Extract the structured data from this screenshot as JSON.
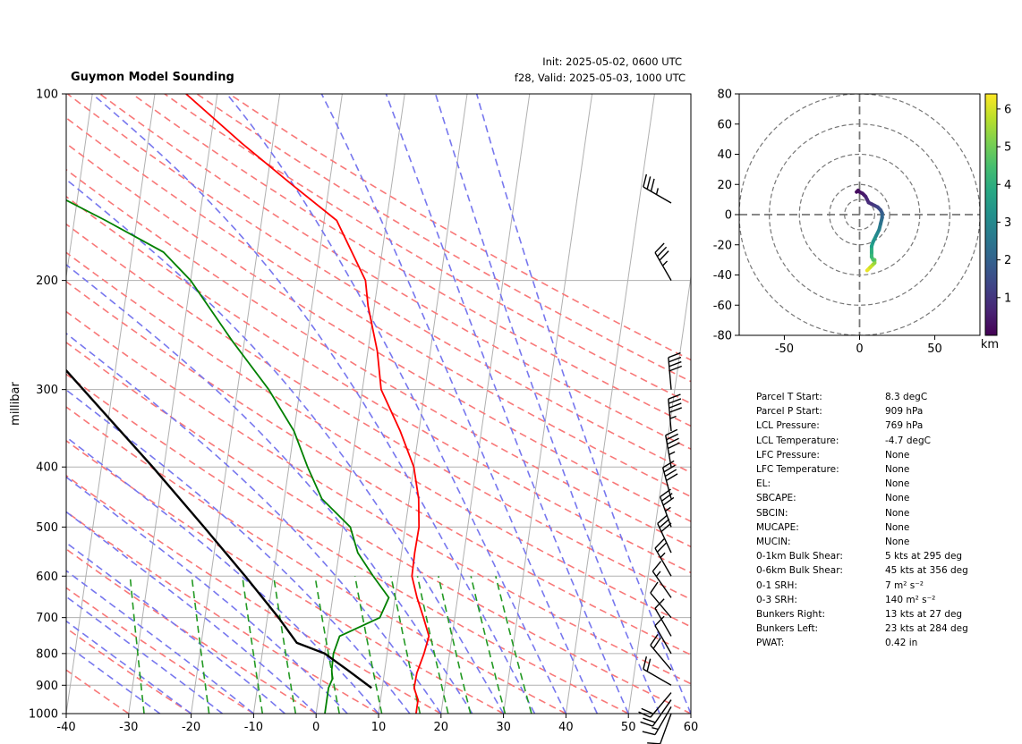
{
  "header": {
    "title": "Guymon Model Sounding",
    "init": "Init: 2025-05-02, 0600 UTC",
    "valid": "f28, Valid: 2025-05-03, 1000 UTC"
  },
  "colors": {
    "temperature": "#ff0000",
    "dewpoint": "#008000",
    "parcel": "#000000",
    "dry_adiabat": "#f87878",
    "moist_adiabat": "#7777ee",
    "mixing_ratio": "#229922",
    "freezing_isotherm": "#7744cc",
    "isotherm": "#b0b0b0",
    "isobar": "#b0b0b0"
  },
  "chart_data": [
    {
      "type": "line",
      "name": "skewt",
      "title": "Guymon Model Sounding",
      "xlabel": "",
      "ylabel": "millibar",
      "x_ticks": [
        -40,
        -30,
        -20,
        -10,
        0,
        10,
        20,
        30,
        40,
        50,
        60
      ],
      "y_ticks": [
        100,
        200,
        300,
        400,
        500,
        600,
        700,
        800,
        900,
        1000
      ],
      "xlim": [
        -40,
        60
      ],
      "ylim": [
        1000,
        100
      ],
      "y_scale": "log",
      "skew_per_decade": 99,
      "grid": true,
      "series": [
        {
          "role": "temperature",
          "points": [
            [
              1000,
              16
            ],
            [
              950,
              16
            ],
            [
              909,
              15.1
            ],
            [
              860,
              15.2
            ],
            [
              800,
              15.9
            ],
            [
              750,
              16.3
            ],
            [
              700,
              15
            ],
            [
              650,
              13.5
            ],
            [
              600,
              12.2
            ],
            [
              550,
              12.1
            ],
            [
              500,
              12.2
            ],
            [
              450,
              11.5
            ],
            [
              400,
              10
            ],
            [
              350,
              7
            ],
            [
              300,
              3
            ],
            [
              260,
              1.5
            ],
            [
              220,
              -1
            ],
            [
              200,
              -2
            ],
            [
              160,
              -8
            ],
            [
              140,
              -16
            ],
            [
              120,
              -25
            ],
            [
              100,
              -35
            ]
          ]
        },
        {
          "role": "dewpoint",
          "points": [
            [
              1000,
              1.4
            ],
            [
              909,
              1.4
            ],
            [
              880,
              1.8
            ],
            [
              850,
              1.5
            ],
            [
              800,
              1.4
            ],
            [
              750,
              2
            ],
            [
              700,
              8
            ],
            [
              650,
              9
            ],
            [
              600,
              6
            ],
            [
              550,
              3
            ],
            [
              500,
              1.2
            ],
            [
              450,
              -4
            ],
            [
              400,
              -7
            ],
            [
              350,
              -10
            ],
            [
              300,
              -15
            ],
            [
              250,
              -22
            ],
            [
              200,
              -30
            ],
            [
              180,
              -35
            ],
            [
              160,
              -45
            ],
            [
              140,
              -57
            ],
            [
              120,
              -67
            ],
            [
              100,
              -85
            ]
          ]
        },
        {
          "role": "parcel",
          "points": [
            [
              909,
              8.3
            ],
            [
              850,
              4
            ],
            [
              800,
              0
            ],
            [
              769,
              -4.7
            ],
            [
              700,
              -8.2
            ],
            [
              600,
              -14.5
            ],
            [
              500,
              -22.2
            ],
            [
              400,
              -31.8
            ],
            [
              300,
              -44.7
            ],
            [
              200,
              -62.8
            ],
            [
              150,
              -75
            ],
            [
              100,
              -92
            ]
          ]
        }
      ],
      "wind_barbs": [
        {
          "p": 1000,
          "speed": 10,
          "dir": 200
        },
        {
          "p": 975,
          "speed": 15,
          "dir": 210
        },
        {
          "p": 950,
          "speed": 20,
          "dir": 215
        },
        {
          "p": 925,
          "speed": 20,
          "dir": 220
        },
        {
          "p": 900,
          "speed": 20,
          "dir": 300
        },
        {
          "p": 850,
          "speed": 20,
          "dir": 320
        },
        {
          "p": 800,
          "speed": 10,
          "dir": 330
        },
        {
          "p": 750,
          "speed": 10,
          "dir": 330
        },
        {
          "p": 700,
          "speed": 10,
          "dir": 320
        },
        {
          "p": 650,
          "speed": 15,
          "dir": 325
        },
        {
          "p": 600,
          "speed": 25,
          "dir": 330
        },
        {
          "p": 550,
          "speed": 30,
          "dir": 335
        },
        {
          "p": 500,
          "speed": 35,
          "dir": 340
        },
        {
          "p": 450,
          "speed": 40,
          "dir": 345
        },
        {
          "p": 400,
          "speed": 45,
          "dir": 350
        },
        {
          "p": 350,
          "speed": 45,
          "dir": 355
        },
        {
          "p": 300,
          "speed": 40,
          "dir": 355
        },
        {
          "p": 200,
          "speed": 35,
          "dir": 330
        },
        {
          "p": 150,
          "speed": 35,
          "dir": 300
        }
      ]
    },
    {
      "type": "line",
      "name": "hodograph",
      "xlim": [
        -80,
        80
      ],
      "ylim": [
        -80,
        80
      ],
      "x_ticks": [
        -50,
        0,
        50
      ],
      "y_ticks": [
        80,
        60,
        40,
        20,
        0,
        -20,
        -40,
        -60,
        -80
      ],
      "rings": [
        10,
        20,
        40,
        60,
        80
      ],
      "colorbar": {
        "label": "km",
        "ticks": [
          1,
          2,
          3,
          4,
          5,
          6
        ],
        "range": [
          0,
          6.4
        ]
      },
      "trace": [
        [
          5,
          -37
        ],
        [
          7,
          -35
        ],
        [
          9,
          -33
        ],
        [
          10,
          -32
        ],
        [
          10,
          -30
        ],
        [
          9,
          -30
        ],
        [
          8,
          -28
        ],
        [
          8,
          -25
        ],
        [
          8,
          -21
        ],
        [
          9,
          -18
        ],
        [
          11,
          -14
        ],
        [
          13,
          -10
        ],
        [
          14,
          -6
        ],
        [
          15,
          -2
        ],
        [
          15,
          1
        ],
        [
          14,
          3
        ],
        [
          13,
          4
        ],
        [
          12,
          5
        ],
        [
          10,
          6
        ],
        [
          8,
          7
        ],
        [
          6,
          8
        ],
        [
          5,
          10
        ],
        [
          4,
          12
        ],
        [
          3,
          13
        ],
        [
          2,
          14
        ],
        [
          0,
          15
        ],
        [
          -1,
          16
        ],
        [
          -2,
          15
        ]
      ],
      "trace_heights": [
        6.2,
        5.9,
        5.6,
        5.3,
        4.9,
        4.6,
        4.3,
        4.0,
        3.6,
        3.3,
        3.0,
        2.7,
        2.4,
        2.1,
        1.9,
        1.7,
        1.5,
        1.3,
        1.1,
        0.9,
        0.8,
        0.7,
        0.6,
        0.5,
        0.4,
        0.3,
        0.2,
        0.1
      ]
    }
  ],
  "params": [
    {
      "label": "Parcel T Start:",
      "value": "8.3 degC"
    },
    {
      "label": "Parcel P Start:",
      "value": "909 hPa"
    },
    {
      "label": "LCL Pressure:",
      "value": "769 hPa"
    },
    {
      "label": "LCL Temperature:",
      "value": "-4.7 degC"
    },
    {
      "label": "LFC Pressure:",
      "value": "None"
    },
    {
      "label": "LFC Temperature:",
      "value": "None"
    },
    {
      "label": "EL:",
      "value": "None"
    },
    {
      "label": "SBCAPE:",
      "value": "None"
    },
    {
      "label": "SBCIN:",
      "value": "None"
    },
    {
      "label": "MUCAPE:",
      "value": "None"
    },
    {
      "label": "MUCIN:",
      "value": "None"
    },
    {
      "label": "0-1km Bulk Shear:",
      "value": "5 kts at 295 deg"
    },
    {
      "label": "0-6km Bulk Shear:",
      "value": "45 kts at 356 deg"
    },
    {
      "label": "0-1 SRH:",
      "value": "7 m² s⁻²"
    },
    {
      "label": "0-3 SRH:",
      "value": "140 m² s⁻²"
    },
    {
      "label": "Bunkers Right:",
      "value": "13 kts at 27 deg"
    },
    {
      "label": "Bunkers Left:",
      "value": "23 kts at 284 deg"
    },
    {
      "label": "PWAT:",
      "value": "0.42 in"
    }
  ]
}
